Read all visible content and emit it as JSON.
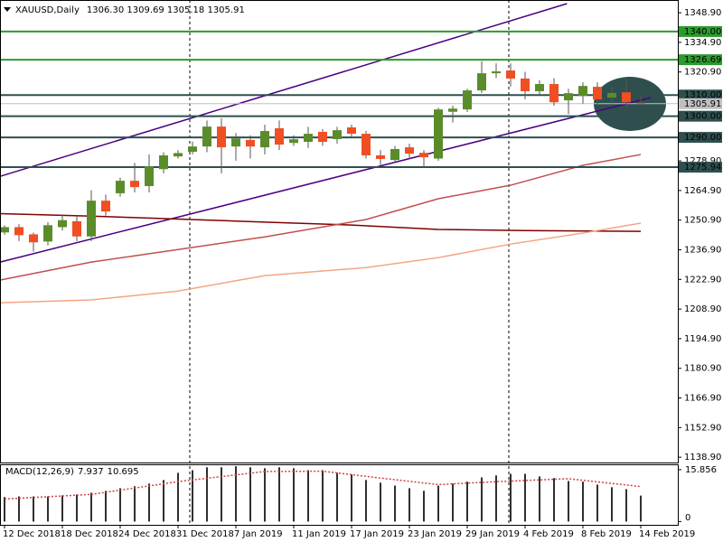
{
  "chart_data": [
    {
      "type": "candlestick",
      "title": "XAUUSD,Daily",
      "subtitle": "1306.30 1309.69 1305.18 1305.91",
      "categories": [
        "12 Dec 2018",
        null,
        null,
        null,
        "18 Dec 2018",
        null,
        null,
        null,
        "24 Dec 2018",
        null,
        null,
        null,
        "31 Dec 2018",
        null,
        null,
        null,
        "7 Jan 2019",
        null,
        null,
        null,
        "11 Jan 2019",
        null,
        null,
        null,
        "17 Jan 2019",
        null,
        null,
        null,
        "23 Jan 2019",
        null,
        null,
        null,
        "29 Jan 2019",
        null,
        null,
        null,
        "4 Feb 2019",
        null,
        null,
        null,
        "8 Feb 2019",
        null,
        null,
        null,
        "14 Feb 2019"
      ],
      "open": [
        1245.1,
        1247.6,
        1244.2,
        1240.8,
        1247.6,
        1250.4,
        1243.2,
        1260.1,
        1263.6,
        1269.5,
        1267.0,
        1275.0,
        1281.0,
        1283.2,
        1285.7,
        1295.1,
        1285.7,
        1288.8,
        1285.3,
        1294.3,
        1287.4,
        1287.9,
        1292.6,
        1289.2,
        1294.7,
        1291.7,
        1281.5,
        1279.3,
        1285.3,
        1282.7,
        1280.0,
        1302.1,
        1303.2,
        1312.2,
        1320.3,
        1321.6,
        1317.8,
        1311.8,
        1315.2,
        1307.5,
        1309.6,
        1313.9,
        1308.8,
        1311.3,
        1306.3
      ],
      "high": [
        1248.5,
        1249.0,
        1245.0,
        1250.0,
        1253.5,
        1253.0,
        1265.0,
        1263.0,
        1271.0,
        1278.0,
        1282.0,
        1283.0,
        1284.0,
        1288.0,
        1298.0,
        1299.0,
        1292.0,
        1291.0,
        1296.0,
        1298.0,
        1291.0,
        1295.0,
        1294.0,
        1295.0,
        1296.0,
        1293.0,
        1284.0,
        1286.0,
        1287.0,
        1284.0,
        1304.0,
        1305.0,
        1313.0,
        1326.0,
        1325.0,
        1325.0,
        1321.0,
        1317.0,
        1318.0,
        1313.0,
        1316.0,
        1316.0,
        1314.0,
        1318.0,
        1309.69
      ],
      "low": [
        1244.0,
        1241.0,
        1236.0,
        1239.0,
        1246.0,
        1241.0,
        1241.0,
        1253.0,
        1262.0,
        1264.0,
        1264.0,
        1273.0,
        1280.0,
        1282.0,
        1283.0,
        1273.0,
        1279.0,
        1280.0,
        1282.0,
        1284.0,
        1286.0,
        1285.0,
        1286.0,
        1287.0,
        1290.0,
        1280.0,
        1277.0,
        1278.0,
        1280.0,
        1276.0,
        1279.0,
        1297.0,
        1302.0,
        1311.0,
        1318.0,
        1314.0,
        1308.0,
        1310.0,
        1305.0,
        1301.0,
        1306.0,
        1305.0,
        1306.0,
        1304.0,
        1305.18
      ],
      "close": [
        1247.6,
        1243.8,
        1240.4,
        1248.5,
        1250.9,
        1243.2,
        1260.1,
        1255.0,
        1269.5,
        1266.5,
        1276.3,
        1281.5,
        1282.6,
        1285.7,
        1295.1,
        1285.3,
        1289.5,
        1285.7,
        1293.0,
        1286.6,
        1289.1,
        1291.7,
        1287.9,
        1293.4,
        1291.7,
        1281.5,
        1279.8,
        1284.5,
        1282.3,
        1280.6,
        1303.2,
        1303.6,
        1312.2,
        1320.3,
        1321.2,
        1317.8,
        1311.8,
        1315.2,
        1306.6,
        1310.9,
        1314.3,
        1307.9,
        1311.0,
        1306.6,
        1305.91
      ],
      "up_color": "#5b8c2a",
      "down_color": "#f04e23",
      "wick_color": "#555555",
      "ylim": [
        1136.4,
        1353.2
      ],
      "yticks": [
        {
          "value": 1348.9,
          "label": "1348.90"
        },
        {
          "value": 1334.9,
          "label": "1334.90"
        },
        {
          "value": 1320.9,
          "label": "1320.90"
        },
        {
          "value": 1278.9,
          "label": "1278.90"
        },
        {
          "value": 1264.9,
          "label": "1264.90"
        },
        {
          "value": 1250.9,
          "label": "1250.90"
        },
        {
          "value": 1236.9,
          "label": "1236.90"
        },
        {
          "value": 1222.9,
          "label": "1222.90"
        },
        {
          "value": 1208.9,
          "label": "1208.90"
        },
        {
          "value": 1194.9,
          "label": "1194.90"
        },
        {
          "value": 1180.9,
          "label": "1180.90"
        },
        {
          "value": 1166.9,
          "label": "1166.90"
        },
        {
          "value": 1152.9,
          "label": "1152.90"
        },
        {
          "value": 1138.9,
          "label": "1138.90"
        }
      ],
      "levels": [
        {
          "value": 1340,
          "label": "1340.00",
          "color": "#2e9a2e"
        },
        {
          "value": 1326.69,
          "label": "1326.69",
          "color": "#2e9a2e"
        },
        {
          "value": 1310,
          "label": "1310.00",
          "color": "#2f4f4f"
        },
        {
          "value": 1305.91,
          "label": "1305.91",
          "color": "#c0c0c0"
        },
        {
          "value": 1300,
          "label": "1300.00",
          "color": "#2f4f4f"
        },
        {
          "value": 1290,
          "label": "1290.00",
          "color": "#2f4f4f"
        },
        {
          "value": 1275.94,
          "label": "1275.94",
          "color": "#2f4f4f"
        }
      ],
      "overlays": [
        {
          "color": "#800000",
          "x": [
            -0.3,
            6,
            12,
            18,
            24,
            30,
            36,
            44
          ],
          "values": [
            1254.0,
            1252.8,
            1251.4,
            1250.0,
            1248.6,
            1246.5,
            1246.0,
            1245.6
          ]
        },
        {
          "color": "#c0504d",
          "x": [
            -0.3,
            6,
            12,
            18,
            25,
            30,
            35,
            40,
            44
          ],
          "values": [
            1222.6,
            1231.1,
            1237.0,
            1243.0,
            1251.2,
            1261.0,
            1267.4,
            1276.8,
            1281.9
          ]
        },
        {
          "color": "#f4a582",
          "x": [
            -0.3,
            6,
            12,
            18,
            25,
            30,
            35,
            40,
            44
          ],
          "values": [
            1211.9,
            1213.2,
            1217.4,
            1224.7,
            1228.5,
            1233.2,
            1239.6,
            1244.8,
            1249.5
          ]
        }
      ],
      "trendlines": [
        {
          "color": "#4b0082",
          "x": [
            -0.3,
            38.9
          ],
          "values": [
            1271.6,
            1353.2
          ]
        },
        {
          "color": "#4b0082",
          "x": [
            -0.3,
            44.7
          ],
          "values": [
            1231.1,
            1308.8
          ]
        }
      ]
    },
    {
      "type": "bar",
      "title": "MACD(12,26,9)",
      "color": "#303030",
      "values": [
        7.5,
        7.7,
        7.7,
        7.7,
        8.0,
        8.3,
        8.8,
        9.4,
        10.2,
        10.8,
        11.6,
        12.7,
        14.9,
        15.7,
        16.6,
        16.6,
        16.9,
        16.6,
        16.3,
        16.6,
        16.3,
        15.7,
        15.7,
        14.9,
        14.4,
        12.7,
        11.9,
        11.0,
        10.2,
        9.4,
        11.0,
        11.6,
        12.2,
        13.5,
        14.1,
        14.6,
        14.6,
        13.8,
        13.3,
        12.4,
        12.2,
        11.3,
        10.5,
        9.9,
        7.937
      ],
      "signal": {
        "color": "#d04040",
        "x": [
          0,
          6,
          12,
          18,
          22,
          26,
          30,
          34,
          39,
          44
        ],
        "values": [
          6.9,
          8.3,
          12.2,
          15.3,
          15.4,
          13.3,
          11.3,
          12.2,
          13.1,
          10.695
        ]
      },
      "ylim": [
        -1,
        17.5
      ],
      "yticks": [
        15.856,
        0
      ]
    }
  ]
}
